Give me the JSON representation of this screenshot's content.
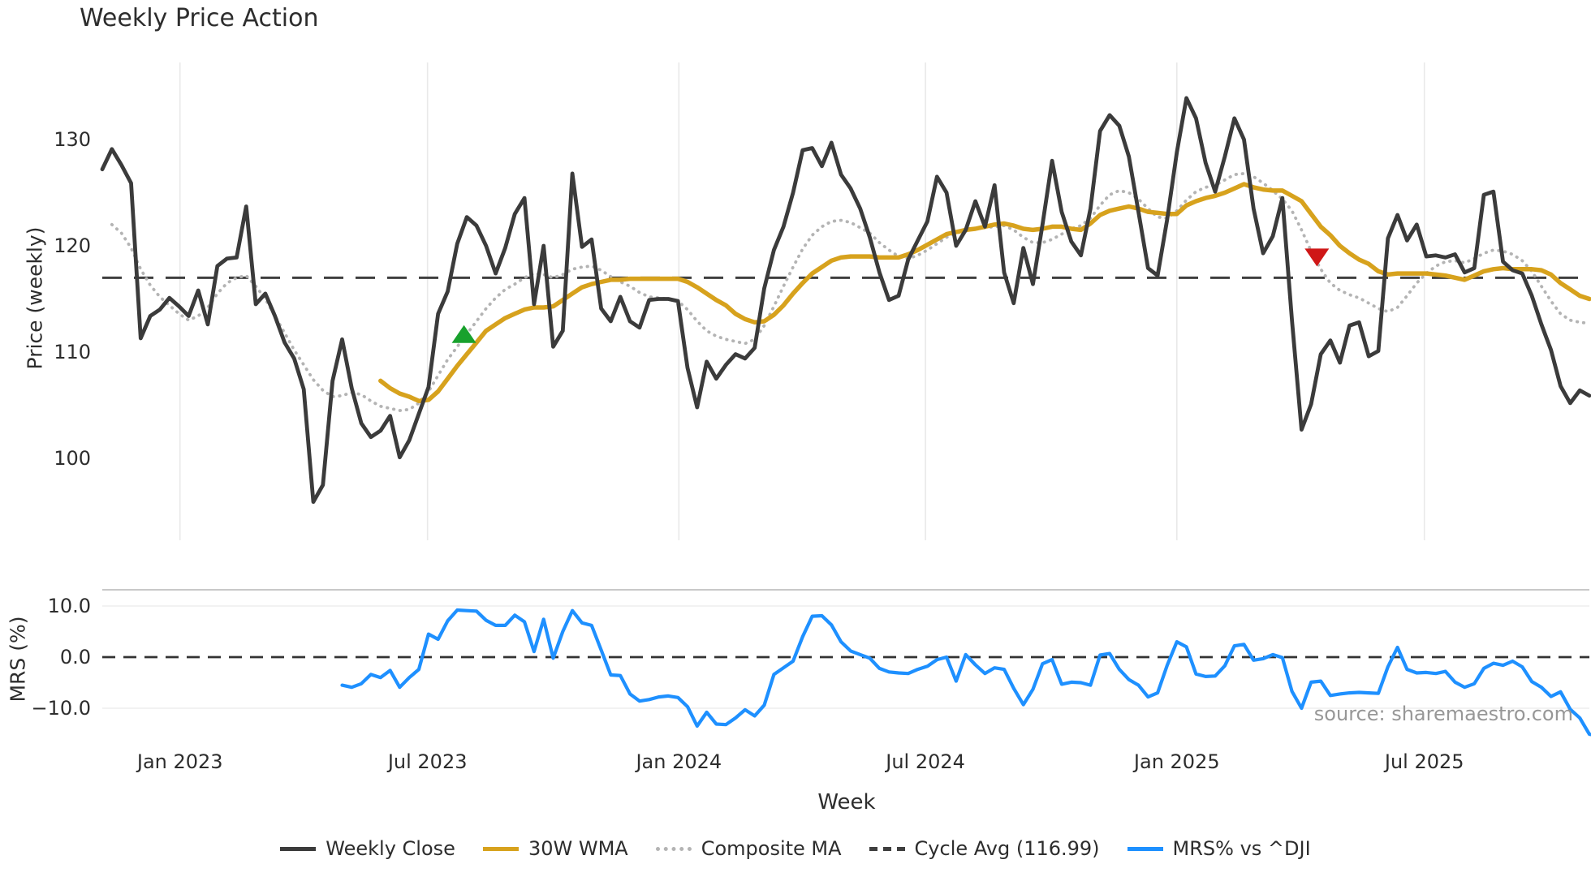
{
  "title": "Weekly Price Action",
  "source": "source: sharemaestro.com",
  "axes": {
    "price_label": "Price (weekly)",
    "mrs_label": "MRS (%)",
    "x_label": "Week",
    "price_ticks": [
      "130",
      "120",
      "110",
      "100"
    ],
    "mrs_ticks": [
      "10.0",
      "0.0",
      "−10.0"
    ]
  },
  "legend": {
    "items": [
      {
        "label": "Weekly Close",
        "color": "#3b3b3b",
        "dash": "solid"
      },
      {
        "label": "30W WMA",
        "color": "#d7a21d",
        "dash": "solid"
      },
      {
        "label": "Composite MA",
        "color": "#b4b4b4",
        "dash": "dotted"
      },
      {
        "label": "Cycle Avg (116.99)",
        "color": "#3f3f3f",
        "dash": "dashed"
      },
      {
        "label": "MRS% vs ^DJI",
        "color": "#1e90ff",
        "dash": "solid"
      }
    ]
  },
  "chart_data": {
    "type": "line",
    "title": "Weekly Price Action",
    "xlabel": "Week",
    "x_unit": "weekly index, week 0 ≈ Nov 2022, ~156 weeks through Oct 2025",
    "x_ticks": [
      {
        "week": 8.1,
        "label": "Jan 2023"
      },
      {
        "week": 33.9,
        "label": "Jul 2023"
      },
      {
        "week": 60.1,
        "label": "Jan 2024"
      },
      {
        "week": 85.8,
        "label": "Jul 2024"
      },
      {
        "week": 112.0,
        "label": "Jan 2025"
      },
      {
        "week": 137.8,
        "label": "Jul 2025"
      }
    ],
    "cycle_avg": 116.99,
    "panels": [
      {
        "name": "price",
        "ylabel": "Price (weekly)",
        "ylim": [
          92.5,
          137.3
        ],
        "yticks": [
          130,
          120,
          110,
          100
        ],
        "grid": "vertical-only",
        "series": [
          {
            "name": "Weekly Close",
            "color": "#3b3b3b",
            "style": "solid",
            "width": 4.8,
            "start_week": 0,
            "values": [
              127.2,
              129.1,
              127.6,
              125.9,
              111.3,
              113.4,
              114.0,
              115.1,
              114.3,
              113.4,
              115.8,
              112.6,
              118.1,
              118.8,
              118.9,
              123.7,
              114.5,
              115.5,
              113.4,
              110.9,
              109.4,
              106.5,
              95.9,
              97.5,
              107.3,
              111.2,
              106.6,
              103.3,
              102.0,
              102.6,
              104.0,
              100.1,
              101.7,
              104.2,
              106.7,
              113.6,
              115.7,
              120.2,
              122.7,
              121.9,
              120.0,
              117.4,
              119.8,
              123.0,
              124.5,
              114.5,
              120.0,
              110.5,
              112.0,
              126.8,
              119.9,
              120.6,
              114.1,
              112.9,
              115.2,
              112.9,
              112.3,
              114.9,
              115.0,
              115.0,
              114.8,
              108.5,
              104.8,
              109.1,
              107.5,
              108.8,
              109.8,
              109.4,
              110.4,
              116.0,
              119.6,
              121.8,
              125.0,
              129.0,
              129.2,
              127.5,
              129.7,
              126.7,
              125.4,
              123.5,
              120.8,
              117.5,
              114.9,
              115.3,
              118.7,
              120.5,
              122.3,
              126.5,
              125.0,
              120.0,
              121.5,
              124.2,
              121.8,
              125.7,
              117.5,
              114.6,
              119.8,
              116.4,
              122.0,
              128.0,
              123.2,
              120.4,
              119.1,
              123.5,
              130.8,
              132.3,
              131.3,
              128.4,
              123.2,
              117.9,
              117.2,
              122.5,
              128.8,
              133.9,
              132.0,
              127.8,
              125.1,
              128.4,
              132.0,
              130.0,
              123.5,
              119.3,
              120.9,
              124.5,
              113.0,
              102.7,
              105.1,
              109.8,
              111.1,
              109.0,
              112.5,
              112.8,
              109.6,
              110.1,
              120.7,
              122.9,
              120.5,
              122.0,
              119.0,
              119.1,
              118.9,
              119.2,
              117.5,
              117.9,
              124.8,
              125.1,
              118.5,
              117.7,
              117.4,
              115.3,
              112.6,
              110.2,
              106.8,
              105.2,
              106.4,
              105.9
            ]
          },
          {
            "name": "30W WMA",
            "color": "#d7a21d",
            "style": "solid",
            "width": 5.5,
            "start_week": 29,
            "values": [
              107.3,
              106.6,
              106.1,
              105.8,
              105.4,
              105.5,
              106.3,
              107.5,
              108.7,
              109.8,
              110.9,
              112.0,
              112.6,
              113.2,
              113.6,
              114.0,
              114.2,
              114.2,
              114.3,
              114.9,
              115.5,
              116.1,
              116.4,
              116.6,
              116.8,
              116.8,
              116.9,
              116.9,
              116.9,
              116.9,
              116.9,
              116.9,
              116.6,
              116.1,
              115.5,
              114.9,
              114.4,
              113.6,
              113.1,
              112.8,
              112.9,
              113.5,
              114.4,
              115.5,
              116.5,
              117.4,
              118.0,
              118.6,
              118.9,
              119.0,
              119.0,
              119.0,
              118.9,
              118.9,
              118.9,
              119.2,
              119.6,
              120.1,
              120.6,
              121.1,
              121.3,
              121.5,
              121.6,
              121.8,
              122.0,
              122.1,
              121.9,
              121.6,
              121.5,
              121.6,
              121.8,
              121.8,
              121.6,
              121.5,
              122.1,
              122.9,
              123.3,
              123.5,
              123.7,
              123.5,
              123.2,
              123.1,
              123.0,
              123.0,
              123.8,
              124.2,
              124.5,
              124.7,
              125.0,
              125.4,
              125.8,
              125.5,
              125.3,
              125.2,
              125.2,
              124.7,
              124.2,
              123.0,
              121.8,
              121.0,
              120.0,
              119.3,
              118.7,
              118.3,
              117.6,
              117.3,
              117.4,
              117.4,
              117.4,
              117.4,
              117.3,
              117.2,
              117.0,
              116.8,
              117.2,
              117.6,
              117.8,
              117.9,
              117.8,
              117.8,
              117.8,
              117.7,
              117.3,
              116.5,
              115.9,
              115.3,
              115.0
            ]
          },
          {
            "name": "Composite MA",
            "color": "#b4b4b4",
            "style": "dotted",
            "width": 3.8,
            "start_week": 1,
            "values": [
              122.0,
              121.2,
              119.8,
              117.8,
              116.3,
              115.2,
              114.4,
              113.6,
              113.0,
              113.4,
              114.2,
              115.5,
              116.5,
              117.0,
              117.2,
              116.2,
              115.0,
              113.4,
              111.8,
              110.2,
              108.8,
              107.4,
              106.4,
              105.8,
              105.9,
              106.2,
              106.0,
              105.4,
              104.9,
              104.7,
              104.5,
              104.6,
              105.2,
              106.3,
              107.8,
              109.3,
              110.5,
              111.7,
              112.9,
              114.1,
              115.1,
              115.9,
              116.4,
              117.0,
              117.4,
              117.3,
              117.0,
              117.3,
              117.8,
              118.0,
              118.1,
              117.7,
              117.1,
              116.6,
              116.2,
              115.6,
              115.2,
              115.1,
              115.0,
              114.8,
              114.0,
              112.9,
              112.0,
              111.5,
              111.2,
              111.0,
              110.8,
              111.2,
              112.5,
              114.3,
              116.2,
              118.0,
              119.7,
              121.0,
              121.8,
              122.3,
              122.4,
              122.2,
              121.7,
              121.2,
              120.3,
              119.6,
              119.0,
              118.8,
              119.1,
              119.6,
              120.2,
              120.8,
              121.2,
              121.4,
              121.6,
              121.7,
              121.8,
              121.9,
              121.5,
              120.8,
              120.3,
              120.3,
              120.6,
              121.1,
              121.6,
              121.9,
              122.6,
              123.8,
              124.8,
              125.2,
              125.0,
              124.4,
              123.5,
              122.7,
              122.6,
              123.3,
              124.3,
              125.1,
              125.5,
              125.7,
              126.2,
              126.7,
              126.8,
              126.5,
              125.9,
              125.2,
              124.4,
              123.3,
              121.5,
              119.5,
              117.8,
              116.5,
              115.8,
              115.4,
              115.1,
              114.6,
              114.1,
              113.8,
              114.2,
              115.3,
              116.5,
              117.4,
              118.1,
              118.5,
              118.6,
              118.4,
              118.8,
              119.3,
              119.6,
              119.5,
              119.2,
              118.6,
              117.6,
              116.2,
              114.8,
              113.6,
              113.0,
              112.8,
              112.7
            ]
          },
          {
            "name": "Cycle Avg",
            "color": "#3f3f3f",
            "style": "dashed",
            "width": 3,
            "value": 116.99
          }
        ],
        "markers": [
          {
            "type": "triangle-up",
            "color": "#18a12d",
            "week": 37.7,
            "price": 111.7
          },
          {
            "type": "triangle-down",
            "color": "#cf1717",
            "week": 126.6,
            "price": 118.9
          }
        ]
      },
      {
        "name": "mrs",
        "ylabel": "MRS (%)",
        "ylim": [
          -16.3,
          13.2
        ],
        "yticks": [
          10.0,
          0.0,
          -10.0
        ],
        "zero_line": "dashed",
        "series": [
          {
            "name": "MRS% vs ^DJI",
            "color": "#1e90ff",
            "style": "solid",
            "width": 4.2,
            "start_week": 25,
            "values": [
              -5.5,
              -5.9,
              -5.2,
              -3.4,
              -4.0,
              -2.6,
              -5.9,
              -4.0,
              -2.4,
              4.5,
              3.5,
              7.1,
              9.2,
              9.1,
              9.0,
              7.2,
              6.2,
              6.2,
              8.2,
              6.9,
              1.1,
              7.4,
              -0.2,
              5.0,
              9.1,
              6.7,
              6.2,
              1.4,
              -3.5,
              -3.6,
              -7.2,
              -8.6,
              -8.3,
              -7.8,
              -7.6,
              -7.9,
              -9.7,
              -13.5,
              -10.8,
              -13.1,
              -13.2,
              -11.9,
              -10.3,
              -11.5,
              -9.4,
              -3.4,
              -2.1,
              -0.8,
              4.0,
              8.0,
              8.1,
              6.3,
              3.0,
              1.2,
              0.5,
              -0.2,
              -2.2,
              -2.9,
              -3.1,
              -3.2,
              -2.4,
              -1.8,
              -0.5,
              0.0,
              -4.7,
              0.5,
              -1.5,
              -3.2,
              -2.1,
              -2.4,
              -6.1,
              -9.3,
              -6.3,
              -1.3,
              -0.5,
              -5.3,
              -4.9,
              -5.0,
              -5.5,
              0.4,
              0.7,
              -2.4,
              -4.4,
              -5.5,
              -7.8,
              -7.0,
              -1.6,
              3.0,
              2.0,
              -3.3,
              -3.8,
              -3.7,
              -1.7,
              2.2,
              2.5,
              -0.6,
              -0.3,
              0.5,
              -0.1,
              -6.7,
              -10.0,
              -4.9,
              -4.7,
              -7.5,
              -7.2,
              -7.0,
              -6.9,
              -7.0,
              -7.1,
              -1.9,
              1.9,
              -2.4,
              -3.1,
              -3.0,
              -3.2,
              -2.8,
              -4.9,
              -5.9,
              -5.2,
              -2.2,
              -1.2,
              -1.6,
              -0.8,
              -1.9,
              -4.8,
              -5.9,
              -7.7,
              -6.8,
              -10.2,
              -11.9,
              -15.1,
              -15.4
            ]
          }
        ]
      }
    ]
  }
}
